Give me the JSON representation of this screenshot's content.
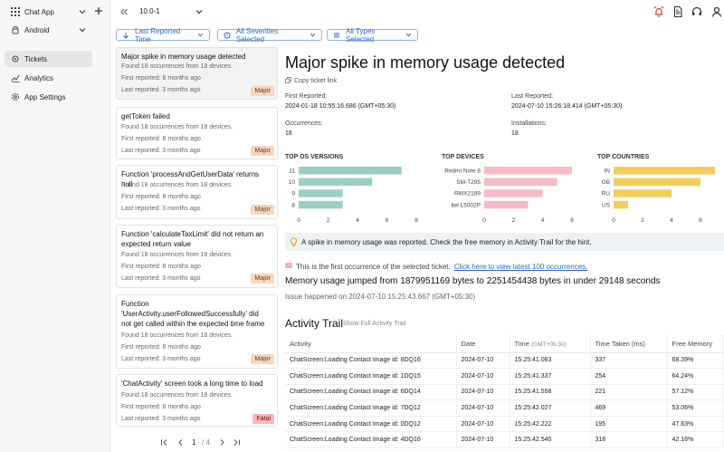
{
  "app": {
    "name": "Chat App",
    "platform": "Android"
  },
  "sidebar": {
    "items": [
      {
        "label": "Tickets",
        "icon": "gear-icon"
      },
      {
        "label": "Analytics",
        "icon": "analytics-icon"
      },
      {
        "label": "App Settings",
        "icon": "settings-icon"
      }
    ]
  },
  "topbar": {
    "version": "10.0-1"
  },
  "filters": {
    "reported": "Last Reported Time",
    "severity": "All Severities Selected",
    "types": "All Types Selected"
  },
  "tickets": [
    {
      "title": "Major spike in memory usage detected",
      "found": "Found 18 occurrences from 18 devices.",
      "first": "First reported: 8 months ago",
      "last": "Last reported: 3 months ago",
      "severity": "Major"
    },
    {
      "title": "getToken failed",
      "found": "Found 18 occurrences from 18 devices.",
      "first": "First reported: 8 months ago",
      "last": "Last reported: 3 months ago",
      "severity": "Major"
    },
    {
      "title": "Function 'processAndGetUserData' returns null",
      "found": "Found 18 occurrences from 18 devices.",
      "first": "First reported: 8 months ago",
      "last": "Last reported: 3 months ago",
      "severity": "Major"
    },
    {
      "title": "Function 'calculateTaxLimit' did not return an expected return value",
      "found": "Found 18 occurrences from 18 devices.",
      "first": "First reported: 8 months ago",
      "last": "Last reported: 3 months ago",
      "severity": "Major"
    },
    {
      "title": "Function 'UserActivity.userFollowedSuccessfully' did not get called within the expected time frame",
      "found": "Found 18 occurrences from 18 devices.",
      "first": "First reported: 8 months ago",
      "last": "Last reported: 3 months ago",
      "severity": "Major"
    },
    {
      "title": "'ChatActivity' screen took a long time to load",
      "found": "Found 18 occurrences from 18 devices.",
      "first": "First reported: 8 months ago",
      "last": "Last reported: 3 months ago",
      "severity": "Fatal"
    }
  ],
  "pager": {
    "current": "1",
    "total": "/ 4"
  },
  "detail": {
    "title": "Major spike in memory usage detected",
    "copy": "Copy ticket link",
    "first_reported_label": "First Reported:",
    "first_reported": "2024-01-18 10:55:16.686 (GMT+05:30)",
    "last_reported_label": "Last Reported:",
    "last_reported": "2024-07-10 15:26:18.414 (GMT+05:30)",
    "occurrences_label": "Occurrences:",
    "occurrences": "18",
    "installations_label": "Installations:",
    "installations": "18",
    "hint": "A spike in memory usage was reported. Check the free memory in Activity Trail for the hint.",
    "first_occ": "This is the first occurrence of the selected ticket.",
    "first_occ_link": "Click here to view latest 100 occurrences.",
    "memory": "Memory usage jumped from 1879951169 bytes to 2251454438 bytes in under 29148 seconds",
    "issue": "Issue happened on 2024-07-10 15:25:43.667 (GMT+05:30)"
  },
  "chart_data": [
    {
      "type": "bar",
      "title": "TOP OS VERSIONS",
      "categories": [
        "11",
        "10",
        "9",
        "8"
      ],
      "values": [
        7,
        5,
        3,
        3
      ],
      "xlim": [
        0,
        8
      ],
      "ticks": [
        "0",
        "2",
        "4",
        "6",
        "8"
      ],
      "color": "#9ccfc4"
    },
    {
      "type": "bar",
      "title": "TOP DEVICES",
      "categories": [
        "Redmi Note 8",
        "SM-T295",
        "RMX2189",
        "itel L5002P"
      ],
      "values": [
        6,
        5,
        4,
        3
      ],
      "xlim": [
        0,
        6
      ],
      "ticks": [
        "0",
        "2",
        "4",
        "6"
      ],
      "color": "#f5bcc8"
    },
    {
      "type": "bar",
      "title": "TOP COUNTRIES",
      "categories": [
        "IN",
        "GB",
        "RU",
        "US"
      ],
      "values": [
        7,
        6,
        4,
        1
      ],
      "xlim": [
        0,
        7
      ],
      "ticks": [
        "0",
        "2",
        "4",
        "6"
      ],
      "color": "#f2cd5c"
    }
  ],
  "activity": {
    "title": "Activity Trail",
    "link": "Show Full Activity Trail",
    "headers": {
      "activity": "Activity",
      "date": "Date",
      "time": "Time",
      "time_tz": "(GMT+05:30)",
      "taken": "Time Taken (ms)",
      "memory": "Free Memory"
    },
    "rows": [
      [
        "ChatScreen:Loading Contact Image id: 8DQ16",
        "2024-07-10",
        "15:25:41.083",
        "337",
        "68.39%"
      ],
      [
        "ChatScreen:Loading Contact Image id: 1DQ15",
        "2024-07-10",
        "15:25:41.337",
        "254",
        "64.24%"
      ],
      [
        "ChatScreen:Loading Contact Image id: 6DQ14",
        "2024-07-10",
        "15:25:41.558",
        "221",
        "57.12%"
      ],
      [
        "ChatScreen:Loading Contact Image id: 7DQ12",
        "2024-07-10",
        "15:25:42.027",
        "469",
        "53.06%"
      ],
      [
        "ChatScreen:Loading Contact Image id: 0DQ12",
        "2024-07-10",
        "15:25:42.222",
        "195",
        "47.63%"
      ],
      [
        "ChatScreen:Loading Contact Image id: 4DQ16",
        "2024-07-10",
        "15:25:42.540",
        "318",
        "42.16%"
      ]
    ]
  }
}
